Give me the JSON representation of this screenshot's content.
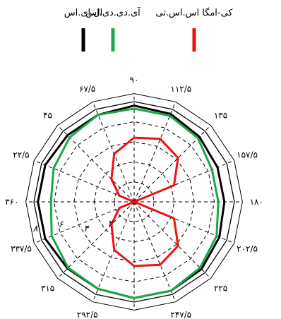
{
  "chart_data": {
    "type": "line",
    "subtype": "polar",
    "angle_labels": [
      {
        "deg": 0,
        "label": "۳۶۰"
      },
      {
        "deg": 22.5,
        "label": "۲۲/۵"
      },
      {
        "deg": 45,
        "label": "۴۵"
      },
      {
        "deg": 67.5,
        "label": "۶۷/۵"
      },
      {
        "deg": 90,
        "label": "۹۰"
      },
      {
        "deg": 112.5,
        "label": "۱۱۲/۵"
      },
      {
        "deg": 135,
        "label": "۱۳۵"
      },
      {
        "deg": 157.5,
        "label": "۱۵۷/۵"
      },
      {
        "deg": 180,
        "label": "۱۸۰"
      },
      {
        "deg": 202.5,
        "label": "۲۰۲/۵"
      },
      {
        "deg": 225,
        "label": "۲۲۵"
      },
      {
        "deg": 247.5,
        "label": "۲۴۷/۵"
      },
      {
        "deg": 270,
        "label": "۲۷۰"
      },
      {
        "deg": 292.5,
        "label": "۲۹۲/۵"
      },
      {
        "deg": 315,
        "label": "۳۱۵"
      },
      {
        "deg": 337.5,
        "label": "۳۳۷/۵"
      }
    ],
    "radial_labels": [
      "۸",
      "۶",
      "۴",
      "۲"
    ],
    "radial_range": [
      0,
      10
    ],
    "radial_rings": [
      2,
      4,
      6,
      8,
      10
    ],
    "angles": [
      0,
      22.5,
      45,
      67.5,
      90,
      112.5,
      135,
      157.5,
      180,
      202.5,
      225,
      247.5,
      270,
      292.5,
      315,
      337.5
    ],
    "series": [
      {
        "name": "ال.ای.اس",
        "color": "#000000",
        "values": [
          9.6,
          9.6,
          9.4,
          9.4,
          9.6,
          9.5,
          9.2,
          9.0,
          9.0,
          9.2,
          9.5,
          9.6,
          9.6,
          9.4,
          9.4,
          9.6
        ]
      },
      {
        "name": "آی.دی.دی.اس",
        "color": "#18a84a",
        "values": [
          8.3,
          8.7,
          9.1,
          9.4,
          9.3,
          9.3,
          9.0,
          8.4,
          8.4,
          8.9,
          9.3,
          9.6,
          9.6,
          9.4,
          9.3,
          8.9
        ]
      },
      {
        "name": "کی-امگا اس.اس.تی",
        "color": "#ee1111",
        "values": [
          0.0,
          1.6,
          3.2,
          5.2,
          6.4,
          6.8,
          6.2,
          4.3,
          0.0,
          4.3,
          6.2,
          6.8,
          6.4,
          5.2,
          3.2,
          1.6
        ]
      }
    ],
    "legend_position": "top",
    "grid": true
  }
}
